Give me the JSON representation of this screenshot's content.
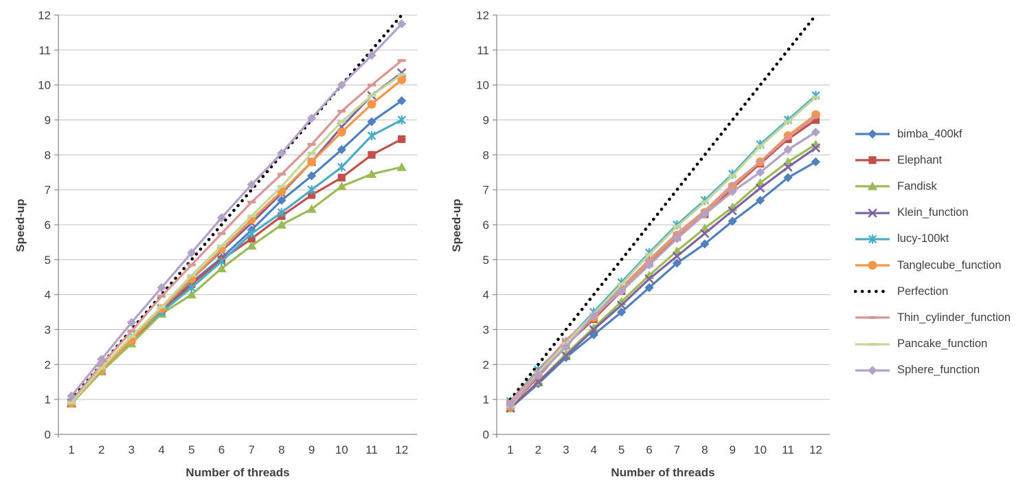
{
  "page": {
    "background": "#FFFFFF"
  },
  "colors": {
    "grid": "#C0C0C0",
    "axis": "#8C8C8C",
    "text": "#3F3F3F"
  },
  "legend_labels": [
    "bimba_400kf",
    "Elephant",
    "Fandisk",
    "Klein_function",
    "lucy-100kt",
    "Tanglecube_function",
    "Perfection",
    "Thin_cylinder_function",
    "Pancake_function",
    "Sphere_function"
  ],
  "chart_data": [
    {
      "type": "line",
      "title": "",
      "xlabel": "Number of threads",
      "ylabel": "Speed-up",
      "x": [
        1,
        2,
        3,
        4,
        5,
        6,
        7,
        8,
        9,
        10,
        11,
        12
      ],
      "ylim": [
        0,
        12
      ],
      "ytick_step": 1,
      "grid": "horizontal",
      "legend_position": "right-of-second-chart",
      "series": [
        {
          "name": "bimba_400kf",
          "color": "#4F81BD",
          "marker": "diamond",
          "line_style": "solid",
          "values": [
            0.9,
            1.85,
            2.7,
            3.55,
            4.35,
            5.05,
            5.85,
            6.7,
            7.4,
            8.15,
            8.95,
            9.55
          ]
        },
        {
          "name": "Elephant",
          "color": "#C0504D",
          "marker": "square",
          "line_style": "solid",
          "values": [
            0.9,
            1.8,
            2.7,
            3.5,
            4.3,
            5.0,
            5.6,
            6.25,
            6.85,
            7.35,
            8.0,
            8.45
          ]
        },
        {
          "name": "Fandisk",
          "color": "#9BBB59",
          "marker": "triangle-up",
          "line_style": "solid",
          "values": [
            0.88,
            1.8,
            2.6,
            3.45,
            4.0,
            4.75,
            5.4,
            6.0,
            6.45,
            7.1,
            7.45,
            7.65
          ]
        },
        {
          "name": "Klein_function",
          "color": "#8064A2",
          "marker": "x",
          "line_style": "solid",
          "values": [
            0.9,
            1.85,
            2.75,
            3.6,
            4.45,
            5.25,
            6.05,
            6.9,
            7.8,
            8.8,
            9.7,
            10.35
          ]
        },
        {
          "name": "lucy-100kt",
          "color": "#4BACC6",
          "marker": "asterisk",
          "line_style": "solid",
          "values": [
            0.92,
            1.85,
            2.75,
            3.5,
            4.2,
            4.95,
            5.75,
            6.35,
            7.0,
            7.65,
            8.55,
            9.0
          ]
        },
        {
          "name": "Tanglecube_function",
          "color": "#F79646",
          "marker": "circle",
          "line_style": "solid",
          "values": [
            0.9,
            1.85,
            2.7,
            3.6,
            4.45,
            5.3,
            6.15,
            6.95,
            7.8,
            8.65,
            9.45,
            10.15
          ]
        },
        {
          "name": "Perfection",
          "color": "#000000",
          "marker": "none",
          "line_style": "dotted",
          "values": [
            1,
            2,
            3,
            4,
            5,
            6,
            7,
            8,
            9,
            10,
            11,
            12
          ]
        },
        {
          "name": "Thin_cylinder_function",
          "color": "#D99694",
          "marker": "dash",
          "line_style": "solid",
          "values": [
            0.95,
            2.0,
            2.95,
            3.95,
            4.85,
            5.75,
            6.65,
            7.45,
            8.3,
            9.25,
            10.0,
            10.7
          ]
        },
        {
          "name": "Pancake_function",
          "color": "#C3D69B",
          "marker": "dash",
          "line_style": "solid",
          "values": [
            0.9,
            1.9,
            2.8,
            3.65,
            4.55,
            5.4,
            6.25,
            7.1,
            8.05,
            8.95,
            9.7,
            10.3
          ]
        },
        {
          "name": "Sphere_function",
          "color": "#B3A2C7",
          "marker": "diamond",
          "line_style": "solid",
          "values": [
            1.1,
            2.15,
            3.2,
            4.2,
            5.2,
            6.2,
            7.15,
            8.05,
            9.05,
            10.0,
            10.85,
            11.75
          ]
        }
      ]
    },
    {
      "type": "line",
      "title": "",
      "xlabel": "Number of threads",
      "ylabel": "Speed-up",
      "x": [
        1,
        2,
        3,
        4,
        5,
        6,
        7,
        8,
        9,
        10,
        11,
        12
      ],
      "ylim": [
        0,
        12
      ],
      "ytick_step": 1,
      "grid": "horizontal",
      "series": [
        {
          "name": "bimba_400kf",
          "color": "#4F81BD",
          "marker": "diamond",
          "line_style": "solid",
          "values": [
            0.75,
            1.45,
            2.2,
            2.85,
            3.5,
            4.2,
            4.9,
            5.45,
            6.1,
            6.7,
            7.35,
            7.8
          ]
        },
        {
          "name": "Elephant",
          "color": "#C0504D",
          "marker": "square",
          "line_style": "solid",
          "values": [
            0.8,
            1.65,
            2.55,
            3.3,
            4.1,
            4.9,
            5.65,
            6.3,
            7.05,
            7.75,
            8.45,
            9.0
          ]
        },
        {
          "name": "Fandisk",
          "color": "#9BBB59",
          "marker": "triangle-up",
          "line_style": "solid",
          "values": [
            0.75,
            1.5,
            2.3,
            3.05,
            3.8,
            4.55,
            5.25,
            5.9,
            6.5,
            7.2,
            7.8,
            8.3
          ]
        },
        {
          "name": "Klein_function",
          "color": "#8064A2",
          "marker": "x",
          "line_style": "solid",
          "values": [
            0.75,
            1.5,
            2.25,
            3.0,
            3.7,
            4.45,
            5.1,
            5.75,
            6.4,
            7.05,
            7.65,
            8.2
          ]
        },
        {
          "name": "lucy-100kt",
          "color": "#4BACC6",
          "marker": "asterisk",
          "line_style": "solid",
          "values": [
            0.95,
            1.85,
            2.65,
            3.5,
            4.35,
            5.2,
            6.0,
            6.7,
            7.45,
            8.3,
            9.0,
            9.7
          ]
        },
        {
          "name": "Tanglecube_function",
          "color": "#F79646",
          "marker": "circle",
          "line_style": "solid",
          "values": [
            0.8,
            1.7,
            2.6,
            3.35,
            4.15,
            4.95,
            5.7,
            6.35,
            7.1,
            7.8,
            8.55,
            9.15
          ]
        },
        {
          "name": "Perfection",
          "color": "#000000",
          "marker": "none",
          "line_style": "dotted",
          "values": [
            1,
            2,
            3,
            4,
            5,
            6,
            7,
            8,
            9,
            10,
            11,
            12
          ]
        },
        {
          "name": "Thin_cylinder_function",
          "color": "#D99694",
          "marker": "dash",
          "line_style": "solid",
          "values": [
            0.95,
            1.8,
            2.7,
            3.4,
            4.2,
            5.0,
            5.75,
            6.4,
            7.15,
            7.8,
            8.5,
            9.1
          ]
        },
        {
          "name": "Pancake_function",
          "color": "#C3D69B",
          "marker": "dash",
          "line_style": "solid",
          "values": [
            0.8,
            1.75,
            2.6,
            3.45,
            4.3,
            5.15,
            5.95,
            6.65,
            7.4,
            8.25,
            8.95,
            9.65
          ]
        },
        {
          "name": "Sphere_function",
          "color": "#B3A2C7",
          "marker": "diamond",
          "line_style": "solid",
          "values": [
            0.85,
            1.7,
            2.5,
            3.4,
            4.1,
            4.85,
            5.6,
            6.3,
            6.95,
            7.5,
            8.15,
            8.65
          ]
        }
      ]
    }
  ]
}
